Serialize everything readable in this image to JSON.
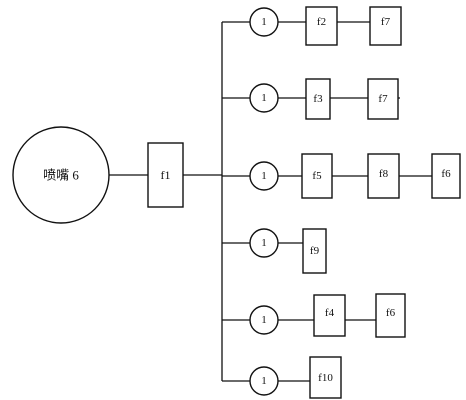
{
  "diagram": {
    "source": {
      "label": "喷嘴 6"
    },
    "hub": {
      "label": "f1"
    },
    "branches": [
      {
        "valve": "1",
        "boxes": [
          "f2",
          "f7"
        ]
      },
      {
        "valve": "1",
        "boxes": [
          "f3",
          "f7"
        ]
      },
      {
        "valve": "1",
        "boxes": [
          "f5",
          "f8",
          "f6"
        ]
      },
      {
        "valve": "1",
        "boxes": [
          "f9"
        ]
      },
      {
        "valve": "1",
        "boxes": [
          "f4",
          "f6"
        ]
      },
      {
        "valve": "1",
        "boxes": [
          "f10"
        ]
      }
    ]
  }
}
